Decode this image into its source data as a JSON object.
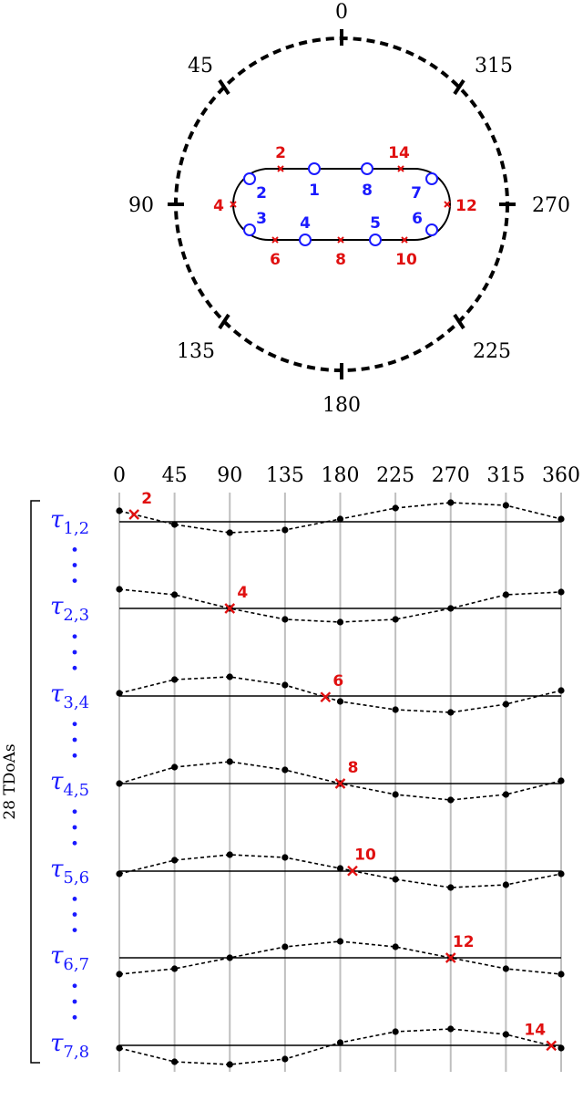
{
  "colors": {
    "mic": "#1a1aff",
    "crossing": "#e01010",
    "line": "#000000",
    "grid": "#bfbfbf"
  },
  "polar": {
    "angle_labels": [
      "0",
      "45",
      "90",
      "135",
      "180",
      "225",
      "270",
      "315"
    ],
    "mic_labels": [
      "1",
      "2",
      "3",
      "4",
      "5",
      "6",
      "7",
      "8"
    ],
    "crossing_labels": [
      "2",
      "4",
      "6",
      "8",
      "10",
      "12",
      "14"
    ]
  },
  "tdoa": {
    "x_ticks": [
      "0",
      "45",
      "90",
      "135",
      "180",
      "225",
      "270",
      "315",
      "360"
    ],
    "bracket_label": "28 TDoAs",
    "rows": [
      {
        "tau": "τ",
        "sub": "1,2",
        "crossing_label": "2",
        "crossing_deg": 12,
        "values": [
          0.2,
          -0.05,
          -0.2,
          -0.15,
          0.05,
          0.25,
          0.35,
          0.3,
          0.05
        ]
      },
      {
        "tau": "τ",
        "sub": "2,3",
        "crossing_label": "4",
        "crossing_deg": 90,
        "values": [
          0.35,
          0.25,
          0.0,
          -0.2,
          -0.25,
          -0.2,
          0.0,
          0.25,
          0.3
        ]
      },
      {
        "tau": "τ",
        "sub": "3,4",
        "crossing_label": "6",
        "crossing_deg": 168,
        "values": [
          0.05,
          0.3,
          0.35,
          0.2,
          -0.1,
          -0.25,
          -0.3,
          -0.15,
          0.1
        ]
      },
      {
        "tau": "τ",
        "sub": "4,5",
        "crossing_label": "8",
        "crossing_deg": 180,
        "values": [
          0.0,
          0.3,
          0.4,
          0.25,
          0.0,
          -0.2,
          -0.3,
          -0.2,
          0.05
        ]
      },
      {
        "tau": "τ",
        "sub": "5,6",
        "crossing_label": "10",
        "crossing_deg": 190,
        "values": [
          -0.05,
          0.2,
          0.3,
          0.25,
          0.05,
          -0.15,
          -0.3,
          -0.25,
          -0.05
        ]
      },
      {
        "tau": "τ",
        "sub": "6,7",
        "crossing_label": "12",
        "crossing_deg": 270,
        "values": [
          -0.3,
          -0.2,
          0.0,
          0.2,
          0.3,
          0.2,
          0.0,
          -0.2,
          -0.3
        ]
      },
      {
        "tau": "τ",
        "sub": "7,8",
        "crossing_label": "14",
        "crossing_deg": 352,
        "values": [
          -0.05,
          -0.3,
          -0.35,
          -0.25,
          0.05,
          0.25,
          0.3,
          0.2,
          -0.05
        ]
      }
    ]
  }
}
